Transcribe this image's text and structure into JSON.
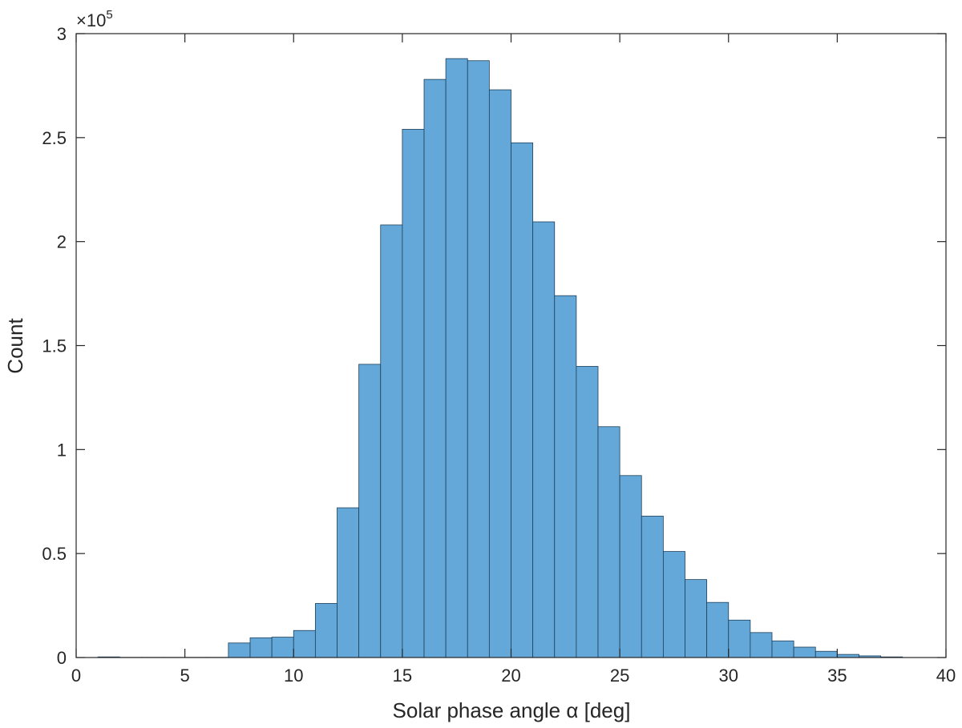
{
  "chart_data": {
    "type": "bar",
    "subtype": "histogram",
    "xlabel": "Solar phase angle α [deg]",
    "ylabel": "Count",
    "y_exponent_label": {
      "times": "×10",
      "power": "5"
    },
    "xlim": [
      0,
      40
    ],
    "ylim": [
      0,
      300000
    ],
    "xticks": [
      0,
      5,
      10,
      15,
      20,
      25,
      30,
      35,
      40
    ],
    "yticks": [
      0,
      50000,
      100000,
      150000,
      200000,
      250000,
      300000
    ],
    "xtick_labels": [
      "0",
      "5",
      "10",
      "15",
      "20",
      "25",
      "30",
      "35",
      "40"
    ],
    "ytick_labels": [
      "0",
      "0.5",
      "1",
      "1.5",
      "2",
      "2.5",
      "3"
    ],
    "bin_edges": [
      1,
      2,
      3,
      4,
      5,
      6,
      7,
      8,
      9,
      10,
      11,
      12,
      13,
      14,
      15,
      16,
      17,
      18,
      19,
      20,
      21,
      22,
      23,
      24,
      25,
      26,
      27,
      28,
      29,
      30,
      31,
      32,
      33,
      34,
      35,
      36,
      37,
      38
    ],
    "values": [
      300,
      100,
      100,
      100,
      100,
      100,
      7000,
      9500,
      9800,
      13000,
      26000,
      72000,
      141000,
      208000,
      254000,
      278000,
      288000,
      287000,
      273000,
      247500,
      209500,
      174000,
      140000,
      111000,
      87500,
      68000,
      51000,
      37500,
      26500,
      18000,
      12000,
      8000,
      5000,
      3000,
      1500,
      800,
      300
    ],
    "bar_color": "#63a8d8",
    "edge_color": "#1f3f5a",
    "grid": false,
    "box": true
  }
}
